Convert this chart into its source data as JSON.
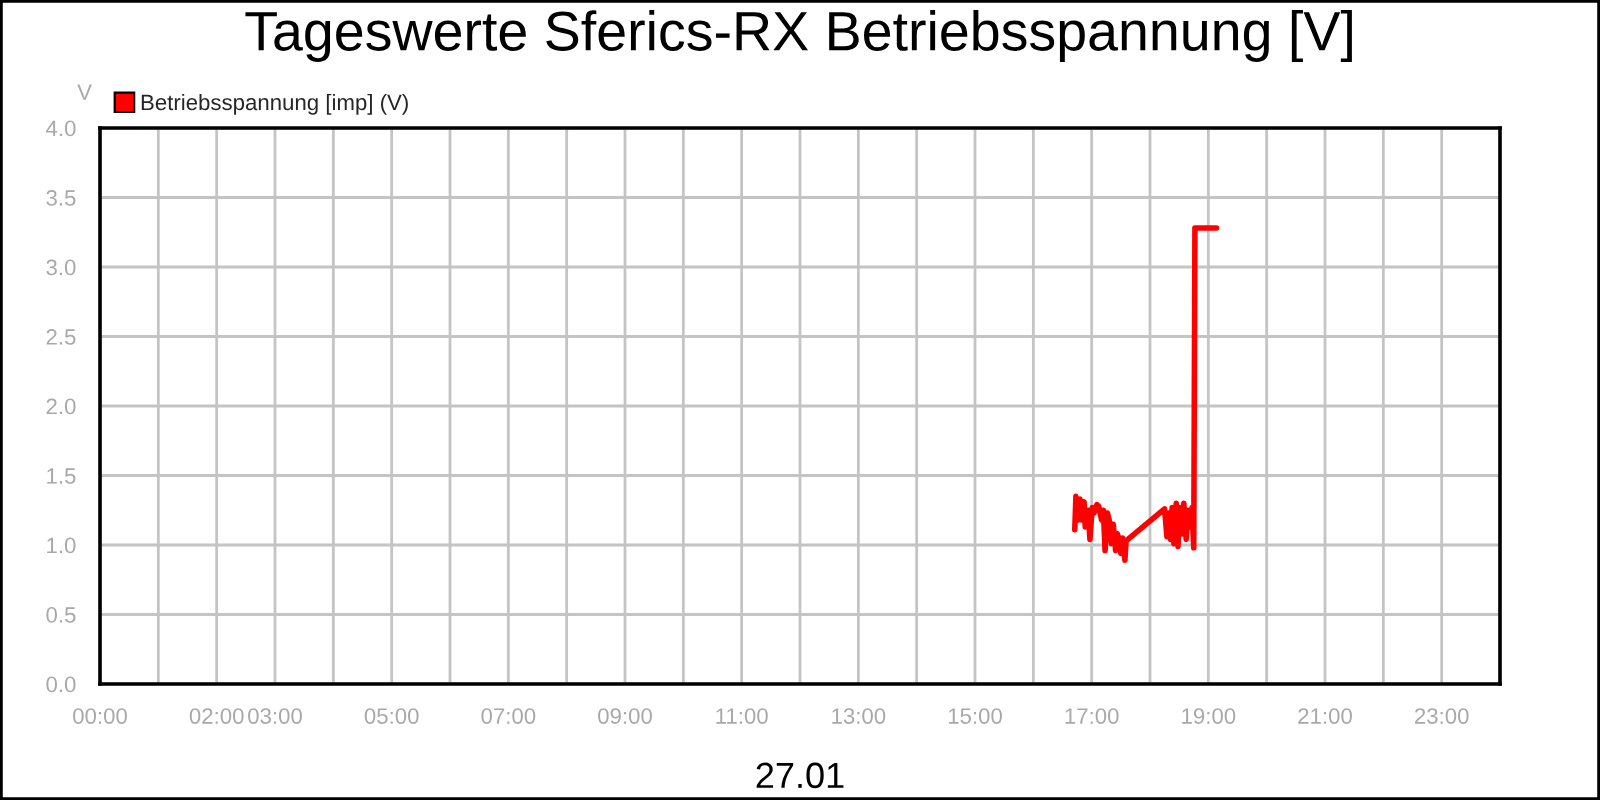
{
  "chart_data": {
    "type": "line",
    "title": "Tageswerte Sferics-RX Betriebsspannung [V]",
    "xlabel": "27.01",
    "ylabel": "V",
    "x": [
      16.71,
      16.73,
      16.77,
      16.8,
      16.83,
      16.87,
      16.89,
      16.94,
      16.97,
      17.01,
      17.04,
      17.09,
      17.12,
      17.17,
      17.2,
      17.23,
      17.27,
      17.3,
      17.34,
      17.37,
      17.41,
      17.44,
      17.47,
      17.5,
      17.53,
      17.57,
      17.59,
      18.25,
      18.29,
      18.32,
      18.35,
      18.38,
      18.41,
      18.45,
      18.48,
      18.51,
      18.55,
      18.58,
      18.62,
      18.65,
      18.69,
      18.72,
      18.75,
      18.77,
      19.14
    ],
    "series": [
      {
        "name": "Betriebsspannung [imp] (V)",
        "color": "#ff0000",
        "values": [
          1.11,
          1.35,
          1.18,
          1.33,
          1.18,
          1.31,
          1.13,
          1.25,
          1.04,
          1.27,
          1.23,
          1.29,
          1.28,
          1.18,
          1.25,
          0.96,
          1.23,
          1.18,
          1.01,
          1.15,
          0.96,
          1.08,
          1.04,
          0.94,
          1.05,
          0.89,
          1.03,
          1.26,
          1.06,
          1.23,
          1.04,
          1.27,
          1.01,
          1.3,
          0.99,
          1.27,
          1.08,
          1.3,
          1.04,
          1.25,
          1.13,
          1.27,
          0.98,
          3.28,
          3.28
        ]
      }
    ],
    "xlim": [
      0,
      24
    ],
    "ylim": [
      0,
      4
    ],
    "xticks": [
      {
        "value": 0,
        "label": "00:00"
      },
      {
        "value": 1,
        "label": null
      },
      {
        "value": 2,
        "label": "02:00"
      },
      {
        "value": 3,
        "label": "03:00"
      },
      {
        "value": 4,
        "label": null
      },
      {
        "value": 5,
        "label": "05:00"
      },
      {
        "value": 6,
        "label": null
      },
      {
        "value": 7,
        "label": "07:00"
      },
      {
        "value": 8,
        "label": null
      },
      {
        "value": 9,
        "label": "09:00"
      },
      {
        "value": 10,
        "label": null
      },
      {
        "value": 11,
        "label": "11:00"
      },
      {
        "value": 12,
        "label": null
      },
      {
        "value": 13,
        "label": "13:00"
      },
      {
        "value": 14,
        "label": null
      },
      {
        "value": 15,
        "label": "15:00"
      },
      {
        "value": 16,
        "label": null
      },
      {
        "value": 17,
        "label": "17:00"
      },
      {
        "value": 18,
        "label": null
      },
      {
        "value": 19,
        "label": "19:00"
      },
      {
        "value": 20,
        "label": null
      },
      {
        "value": 21,
        "label": "21:00"
      },
      {
        "value": 22,
        "label": null
      },
      {
        "value": 23,
        "label": "23:00"
      },
      {
        "value": 24,
        "label": null
      }
    ],
    "yticks": [
      {
        "value": 0,
        "label": "0.0"
      },
      {
        "value": 0.5,
        "label": "0.5"
      },
      {
        "value": 1,
        "label": "1.0"
      },
      {
        "value": 1.5,
        "label": "1.5"
      },
      {
        "value": 2,
        "label": "2.0"
      },
      {
        "value": 2.5,
        "label": "2.5"
      },
      {
        "value": 3,
        "label": "3.0"
      },
      {
        "value": 3.5,
        "label": "3.5"
      },
      {
        "value": 4,
        "label": "4.0"
      }
    ],
    "grid": true,
    "legend": "top left",
    "line_style": "solid"
  }
}
